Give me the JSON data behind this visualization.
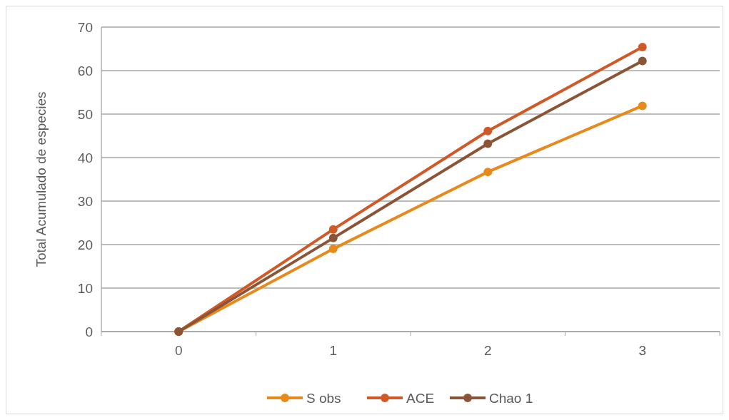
{
  "chart_data": {
    "type": "line",
    "ylabel": "Total Acumulado de especies",
    "categories": [
      "0",
      "1",
      "2",
      "3"
    ],
    "ylim": [
      0,
      70
    ],
    "yticks": [
      0,
      10,
      20,
      30,
      40,
      50,
      60,
      70
    ],
    "grid": "y",
    "legend": "bottom",
    "marker": "circle",
    "line_style": "solid",
    "series": [
      {
        "name": "S obs",
        "color": "#e8891c",
        "values": [
          0,
          19,
          36.7,
          51.9
        ]
      },
      {
        "name": "ACE",
        "color": "#cf5a28",
        "values": [
          0,
          23.5,
          46.1,
          65.4
        ]
      },
      {
        "name": "Chao 1",
        "color": "#8c5436",
        "values": [
          0,
          21.5,
          43.2,
          62.2
        ]
      }
    ]
  }
}
